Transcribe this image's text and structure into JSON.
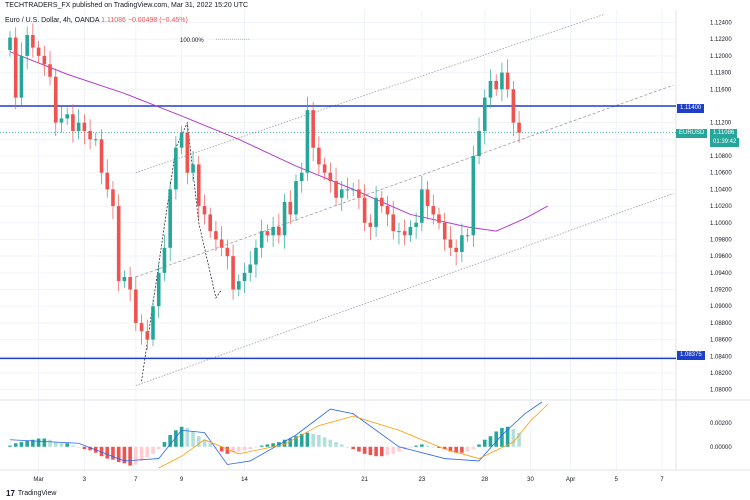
{
  "header": {
    "published": "TECHTRADERS_FX published on TradingView.com, Mar 31, 2022 15:20 UTC",
    "symbol_desc": "Euro / U.S. Dollar, 4h, OANDA",
    "price": "1.11086",
    "change": "−0.00498 (−0.45%)"
  },
  "fib_label": "100.00%",
  "price_tags": {
    "resistance": "1.11400",
    "support": "1.08375",
    "symbol": "EURUSD",
    "last": "1.11086",
    "countdown": "01:39:42"
  },
  "footer": {
    "brand": "TradingView"
  },
  "colors": {
    "up": "#26a69a",
    "down": "#ef5350",
    "level": "#1e3fc7",
    "ma": "#b43bcf",
    "macd": "#2962ff",
    "signal": "#ff9800",
    "channel": "#9e9e9e",
    "zigzag": "#131722"
  },
  "chart_data": {
    "type": "candlestick",
    "symbol": "EURUSD",
    "timeframe": "4h",
    "main": {
      "ylim": [
        1.079,
        1.1255
      ],
      "y_ticks": [
        "1.12400",
        "1.12200",
        "1.12000",
        "1.11800",
        "1.11600",
        "1.11200",
        "1.11000",
        "1.10800",
        "1.10600",
        "1.10400",
        "1.10200",
        "1.10000",
        "1.09800",
        "1.09600",
        "1.09400",
        "1.09200",
        "1.09000",
        "1.08800",
        "1.08600",
        "1.08400",
        "1.08200",
        "1.08000"
      ],
      "x_ticks": [
        {
          "label": "Mar",
          "i": 5
        },
        {
          "label": "3",
          "i": 13
        },
        {
          "label": "7",
          "i": 22
        },
        {
          "label": "9",
          "i": 30
        },
        {
          "label": "14",
          "i": 41
        },
        {
          "label": "21",
          "i": 62
        },
        {
          "label": "23",
          "i": 72
        },
        {
          "label": "28",
          "i": 83
        },
        {
          "label": "30",
          "i": 91
        },
        {
          "label": "Apr",
          "i": 98
        },
        {
          "label": "5",
          "i": 106
        },
        {
          "label": "7",
          "i": 114
        }
      ],
      "close": [
        1.1222,
        1.115,
        1.12,
        1.1225,
        1.121,
        1.12,
        1.119,
        1.1175,
        1.112,
        1.1125,
        1.113,
        1.111,
        1.112,
        1.111,
        1.11,
        1.11,
        1.106,
        1.104,
        1.102,
        1.093,
        1.0935,
        1.092,
        1.088,
        1.087,
        1.086,
        1.09,
        1.094,
        1.097,
        1.104,
        1.109,
        1.1108,
        1.106,
        1.107,
        1.102,
        1.101,
        1.099,
        1.098,
        1.097,
        1.096,
        1.092,
        1.093,
        1.094,
        1.095,
        1.097,
        1.099,
        1.0985,
        1.0995,
        1.0985,
        1.1025,
        1.101,
        1.105,
        1.106,
        1.1135,
        1.109,
        1.107,
        1.106,
        1.105,
        1.103,
        1.104,
        1.104,
        1.104,
        1.103,
        1.1,
        1.0995,
        1.103,
        1.102,
        1.101,
        1.099,
        1.099,
        1.0985,
        1.0995,
        1.1,
        1.104,
        1.102,
        1.101,
        1.1,
        1.098,
        1.097,
        1.0965,
        1.0985,
        1.0985,
        1.108,
        1.111,
        1.115,
        1.117,
        1.116,
        1.118,
        1.116,
        1.112,
        1.1108
      ],
      "ma": [
        [
          0,
          1.1205
        ],
        [
          10,
          1.1178
        ],
        [
          20,
          1.1155
        ],
        [
          30,
          1.1128
        ],
        [
          40,
          1.11
        ],
        [
          50,
          1.1068
        ],
        [
          60,
          1.104
        ],
        [
          70,
          1.101
        ],
        [
          80,
          1.0995
        ],
        [
          85,
          1.099
        ],
        [
          90,
          1.1005
        ],
        [
          94,
          1.102
        ]
      ],
      "levels": [
        {
          "price": 1.114,
          "label": "1.11400"
        },
        {
          "price": 1.08375,
          "label": "1.08375"
        }
      ],
      "channel_upper": [
        [
          22,
          1.106
        ],
        [
          104,
          1.125
        ]
      ],
      "channel_mid": [
        [
          22,
          1.0935
        ],
        [
          116,
          1.1165
        ]
      ],
      "channel_lower": [
        [
          22,
          1.0805
        ],
        [
          116,
          1.1035
        ]
      ],
      "zigzag": [
        [
          23,
          1.081
        ],
        [
          29,
          1.109
        ],
        [
          31,
          1.112
        ],
        [
          33,
          1.1
        ],
        [
          36,
          1.091
        ],
        [
          37,
          1.092
        ]
      ],
      "fib_level": 1.122
    },
    "macd": {
      "ylim": [
        -0.0018,
        0.0038
      ],
      "y_ticks": [
        "0.00200",
        "0.00000"
      ],
      "hist": [
        0.0001,
        0.0003,
        0.0004,
        0.0005,
        0.0006,
        0.0007,
        0.0007,
        0.0006,
        0.0004,
        0.0003,
        0.0003,
        0.0001,
        0.0,
        -0.0002,
        -0.0003,
        -0.0005,
        -0.0008,
        -0.001,
        -0.0011,
        -0.0013,
        -0.0014,
        -0.0016,
        -0.0015,
        -0.0012,
        -0.0009,
        -0.0006,
        -0.0002,
        0.0004,
        0.001,
        0.0014,
        0.0017,
        0.0016,
        0.0013,
        0.0009,
        0.0006,
        0.0003,
        0.0,
        -0.0004,
        -0.0006,
        -0.0005,
        -0.0004,
        -0.0003,
        -0.0002,
        0.0,
        0.0001,
        0.0002,
        0.0003,
        0.0004,
        0.0006,
        0.0007,
        0.0009,
        0.0011,
        0.0012,
        0.0011,
        0.001,
        0.0008,
        0.0006,
        0.0004,
        0.0002,
        0.0,
        -0.0002,
        -0.0004,
        -0.0006,
        -0.0007,
        -0.0008,
        -0.0008,
        -0.0007,
        -0.0006,
        -0.0004,
        -0.0002,
        0.0,
        0.0001,
        0.0002,
        0.0001,
        0.0,
        -0.0001,
        -0.0002,
        -0.0004,
        -0.0005,
        -0.0005,
        -0.0004,
        -0.0002,
        0.0002,
        0.0006,
        0.0009,
        0.0013,
        0.0016,
        0.0017,
        0.0015,
        0.0012
      ],
      "macd_line": [
        [
          0,
          0.0006
        ],
        [
          12,
          0.0003
        ],
        [
          20,
          -0.0012
        ],
        [
          26,
          -0.001
        ],
        [
          30,
          0.0014
        ],
        [
          34,
          0.0012
        ],
        [
          38,
          -0.0015
        ],
        [
          42,
          -0.0012
        ],
        [
          50,
          0.001
        ],
        [
          56,
          0.0032
        ],
        [
          60,
          0.0028
        ],
        [
          68,
          0.0
        ],
        [
          76,
          -0.001
        ],
        [
          82,
          -0.0012
        ],
        [
          86,
          0.001
        ],
        [
          90,
          0.0028
        ],
        [
          93,
          0.0038
        ]
      ],
      "signal_line": [
        [
          26,
          -0.0018
        ],
        [
          30,
          -0.0008
        ],
        [
          34,
          0.0006
        ],
        [
          40,
          -0.0006
        ],
        [
          48,
          0.0002
        ],
        [
          54,
          0.0018
        ],
        [
          60,
          0.0026
        ],
        [
          68,
          0.0014
        ],
        [
          76,
          -0.0002
        ],
        [
          82,
          -0.001
        ],
        [
          88,
          0.0004
        ],
        [
          91,
          0.0022
        ],
        [
          94,
          0.0036
        ]
      ]
    }
  }
}
